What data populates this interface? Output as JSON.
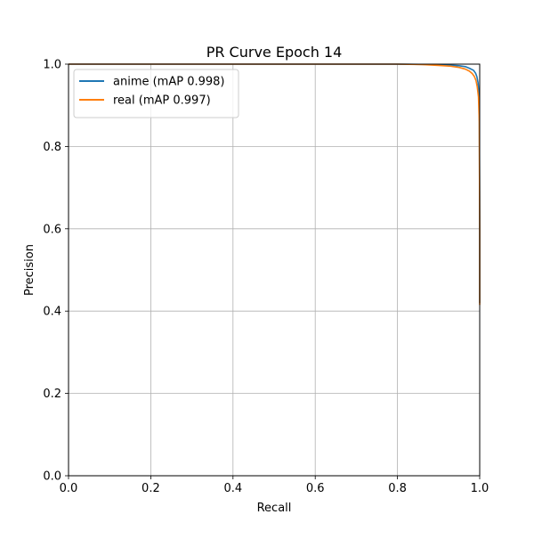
{
  "chart_data": {
    "type": "line",
    "title": "PR Curve Epoch 14",
    "xlabel": "Recall",
    "ylabel": "Precision",
    "xlim": [
      0,
      1
    ],
    "ylim": [
      0,
      1
    ],
    "xticks": [
      0,
      0.2,
      0.4,
      0.6,
      0.8,
      1
    ],
    "xtick_labels": [
      "0.0",
      "0.2",
      "0.4",
      "0.6",
      "0.8",
      "1.0"
    ],
    "yticks": [
      0,
      0.2,
      0.4,
      0.6,
      0.8,
      1
    ],
    "ytick_labels": [
      "0.0",
      "0.2",
      "0.4",
      "0.6",
      "0.8",
      "1.0"
    ],
    "grid": true,
    "legend_position": "upper-left",
    "series": [
      {
        "name": "anime (mAP 0.998)",
        "color": "#1f77b4",
        "x": [
          0,
          0.6,
          0.8,
          0.88,
          0.92,
          0.95,
          0.965,
          0.975,
          0.985,
          0.99,
          0.993,
          0.996,
          0.998,
          0.999,
          1.0,
          1.0
        ],
        "y": [
          1.0,
          1.0,
          1.0,
          0.999,
          0.998,
          0.996,
          0.994,
          0.99,
          0.985,
          0.978,
          0.97,
          0.955,
          0.93,
          0.88,
          0.6,
          0.42
        ]
      },
      {
        "name": "real (mAP 0.997)",
        "color": "#ff7f0e",
        "x": [
          0,
          0.6,
          0.8,
          0.86,
          0.9,
          0.93,
          0.95,
          0.965,
          0.975,
          0.982,
          0.987,
          0.991,
          0.994,
          0.997,
          0.999,
          1.0,
          1.0
        ],
        "y": [
          1.0,
          1.0,
          1.0,
          0.999,
          0.997,
          0.995,
          0.992,
          0.988,
          0.983,
          0.977,
          0.97,
          0.96,
          0.945,
          0.92,
          0.86,
          0.6,
          0.415
        ]
      }
    ]
  }
}
